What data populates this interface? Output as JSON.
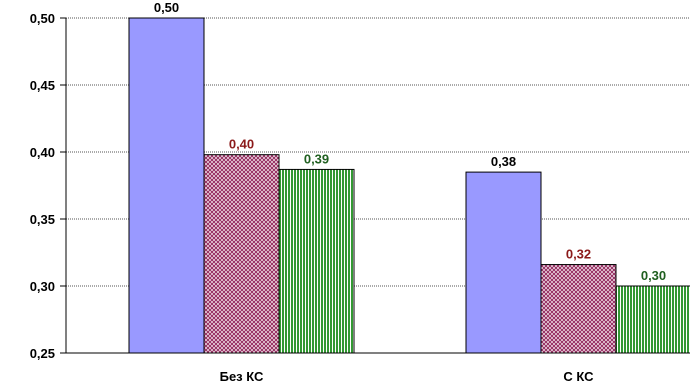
{
  "chart_data": {
    "type": "bar",
    "title": "",
    "xlabel": "",
    "ylabel": "",
    "ylim": [
      0.25,
      0.5
    ],
    "yticks": [
      "0,25",
      "0,30",
      "0,35",
      "0,40",
      "0,45",
      "0,50"
    ],
    "grid": true,
    "categories": [
      "Без КС",
      "С КС"
    ],
    "series": [
      {
        "values": [
          0.5,
          0.385
        ],
        "data_labels": [
          "0,50",
          "0,38"
        ],
        "color": "#9999ff",
        "fill": "solid",
        "label_color": "#000000"
      },
      {
        "values": [
          0.398,
          0.316
        ],
        "data_labels": [
          "0,40",
          "0,32"
        ],
        "color": "#993366",
        "fill": "crosshatch",
        "label_color": "#8b1a1a"
      },
      {
        "values": [
          0.387,
          0.3
        ],
        "data_labels": [
          "0,39",
          "0,30"
        ],
        "color": "#339933",
        "fill": "vertical-stripes",
        "label_color": "#1f5f1f"
      }
    ]
  }
}
